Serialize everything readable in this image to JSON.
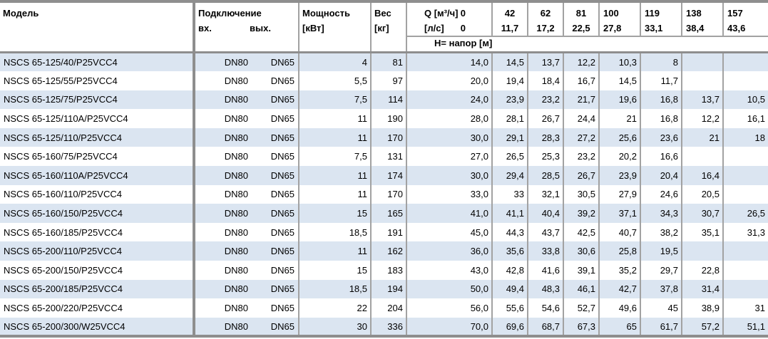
{
  "table": {
    "header": {
      "model": "Модель",
      "connection": "Подключение",
      "connection_in": "вх.",
      "connection_out": "вых.",
      "power_line1": "Мощность",
      "power_line2": "[кВт]",
      "weight_line1": "Вес",
      "weight_line2": "[кг]",
      "flow_m3h_label": "Q [м³/ч]",
      "flow_m3h_first": "0",
      "flow_ls_label": "[л/с]",
      "flow_ls_first": "0",
      "head_row_label": "H= напор [м]"
    },
    "flow_columns": [
      {
        "m3h": "42",
        "ls": "11,7"
      },
      {
        "m3h": "62",
        "ls": "17,2"
      },
      {
        "m3h": "81",
        "ls": "22,5"
      },
      {
        "m3h": "100",
        "ls": "27,8"
      },
      {
        "m3h": "119",
        "ls": "33,1"
      },
      {
        "m3h": "138",
        "ls": "38,4"
      },
      {
        "m3h": "157",
        "ls": "43,6"
      }
    ],
    "rows": [
      {
        "model": "NSCS 65-125/40/P25VCC4",
        "inlet": "DN80",
        "outlet": "DN65",
        "power": "4",
        "weight": "81",
        "head": [
          "14,0",
          "14,5",
          "13,7",
          "12,2",
          "10,3",
          "8",
          "",
          ""
        ]
      },
      {
        "model": "NSCS 65-125/55/P25VCC4",
        "inlet": "DN80",
        "outlet": "DN65",
        "power": "5,5",
        "weight": "97",
        "head": [
          "20,0",
          "19,4",
          "18,4",
          "16,7",
          "14,5",
          "11,7",
          "",
          ""
        ]
      },
      {
        "model": "NSCS 65-125/75/P25VCC4",
        "inlet": "DN80",
        "outlet": "DN65",
        "power": "7,5",
        "weight": "114",
        "head": [
          "24,0",
          "23,9",
          "23,2",
          "21,7",
          "19,6",
          "16,8",
          "13,7",
          "10,5"
        ]
      },
      {
        "model": "NSCS 65-125/110A/P25VCC4",
        "inlet": "DN80",
        "outlet": "DN65",
        "power": "11",
        "weight": "190",
        "head": [
          "28,0",
          "28,1",
          "26,7",
          "24,4",
          "21",
          "16,8",
          "12,2",
          "16,1"
        ]
      },
      {
        "model": "NSCS 65-125/110/P25VCC4",
        "inlet": "DN80",
        "outlet": "DN65",
        "power": "11",
        "weight": "170",
        "head": [
          "30,0",
          "29,1",
          "28,3",
          "27,2",
          "25,6",
          "23,6",
          "21",
          "18"
        ]
      },
      {
        "model": "NSCS 65-160/75/P25VCC4",
        "inlet": "DN80",
        "outlet": "DN65",
        "power": "7,5",
        "weight": "131",
        "head": [
          "27,0",
          "26,5",
          "25,3",
          "23,2",
          "20,2",
          "16,6",
          "",
          ""
        ]
      },
      {
        "model": "NSCS 65-160/110A/P25VCC4",
        "inlet": "DN80",
        "outlet": "DN65",
        "power": "11",
        "weight": "174",
        "head": [
          "30,0",
          "29,4",
          "28,5",
          "26,7",
          "23,9",
          "20,4",
          "16,4",
          ""
        ]
      },
      {
        "model": "NSCS 65-160/110/P25VCC4",
        "inlet": "DN80",
        "outlet": "DN65",
        "power": "11",
        "weight": "170",
        "head": [
          "33,0",
          "33",
          "32,1",
          "30,5",
          "27,9",
          "24,6",
          "20,5",
          ""
        ]
      },
      {
        "model": "NSCS 65-160/150/P25VCC4",
        "inlet": "DN80",
        "outlet": "DN65",
        "power": "15",
        "weight": "165",
        "head": [
          "41,0",
          "41,1",
          "40,4",
          "39,2",
          "37,1",
          "34,3",
          "30,7",
          "26,5"
        ]
      },
      {
        "model": "NSCS 65-160/185/P25VCC4",
        "inlet": "DN80",
        "outlet": "DN65",
        "power": "18,5",
        "weight": "191",
        "head": [
          "45,0",
          "44,3",
          "43,7",
          "42,5",
          "40,7",
          "38,2",
          "35,1",
          "31,3"
        ]
      },
      {
        "model": "NSCS 65-200/110/P25VCC4",
        "inlet": "DN80",
        "outlet": "DN65",
        "power": "11",
        "weight": "162",
        "head": [
          "36,0",
          "35,6",
          "33,8",
          "30,6",
          "25,8",
          "19,5",
          "",
          ""
        ]
      },
      {
        "model": "NSCS 65-200/150/P25VCC4",
        "inlet": "DN80",
        "outlet": "DN65",
        "power": "15",
        "weight": "183",
        "head": [
          "43,0",
          "42,8",
          "41,6",
          "39,1",
          "35,2",
          "29,7",
          "22,8",
          ""
        ]
      },
      {
        "model": "NSCS 65-200/185/P25VCC4",
        "inlet": "DN80",
        "outlet": "DN65",
        "power": "18,5",
        "weight": "194",
        "head": [
          "50,0",
          "49,4",
          "48,3",
          "46,1",
          "42,7",
          "37,8",
          "31,4",
          ""
        ]
      },
      {
        "model": "NSCS 65-200/220/P25VCC4",
        "inlet": "DN80",
        "outlet": "DN65",
        "power": "22",
        "weight": "204",
        "head": [
          "56,0",
          "55,6",
          "54,6",
          "52,7",
          "49,6",
          "45",
          "38,9",
          "31"
        ]
      },
      {
        "model": "NSCS 65-200/300/W25VCC4",
        "inlet": "DN80",
        "outlet": "DN65",
        "power": "30",
        "weight": "336",
        "head": [
          "70,0",
          "69,6",
          "68,7",
          "67,3",
          "65",
          "61,7",
          "57,2",
          "51,1"
        ]
      }
    ]
  },
  "colors": {
    "stripe_blue": "#dbe5f1",
    "border_thick": "#8e8e8e",
    "border_thin": "#a2a2a2",
    "text": "#000000"
  }
}
